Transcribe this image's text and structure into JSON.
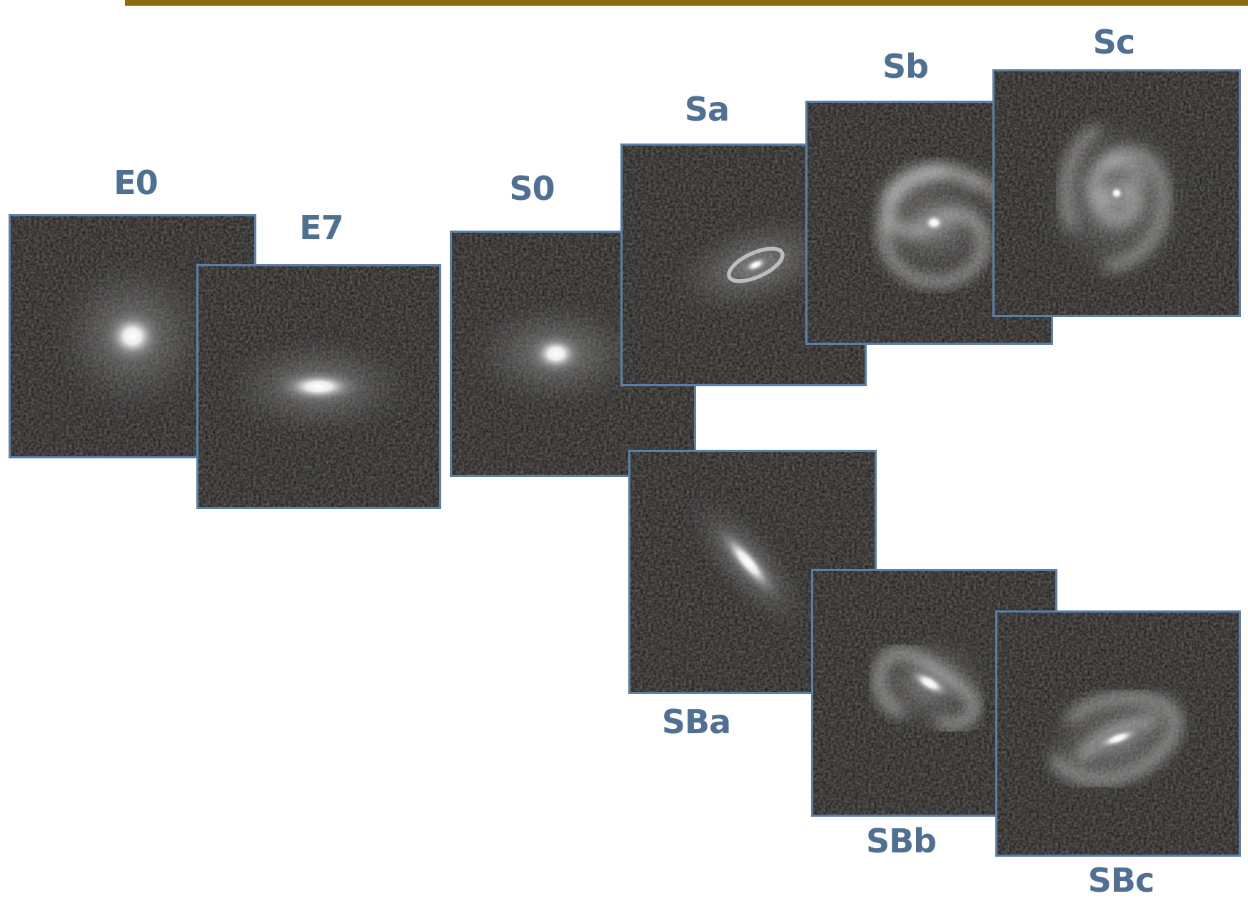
{
  "colors": {
    "top_bar": "#8b6a14",
    "frame_border": "#5b80a8",
    "label_text": "#4f6f93",
    "tile_background": "#141414"
  },
  "galaxies": {
    "e0": {
      "label": "E0",
      "type": "elliptical"
    },
    "e7": {
      "label": "E7",
      "type": "elliptical"
    },
    "s0": {
      "label": "S0",
      "type": "lenticular"
    },
    "sa": {
      "label": "Sa",
      "type": "spiral"
    },
    "sb": {
      "label": "Sb",
      "type": "spiral"
    },
    "sc": {
      "label": "Sc",
      "type": "spiral"
    },
    "sba": {
      "label": "SBa",
      "type": "barred-spiral"
    },
    "sbb": {
      "label": "SBb",
      "type": "barred-spiral"
    },
    "sbc": {
      "label": "SBc",
      "type": "barred-spiral"
    }
  }
}
